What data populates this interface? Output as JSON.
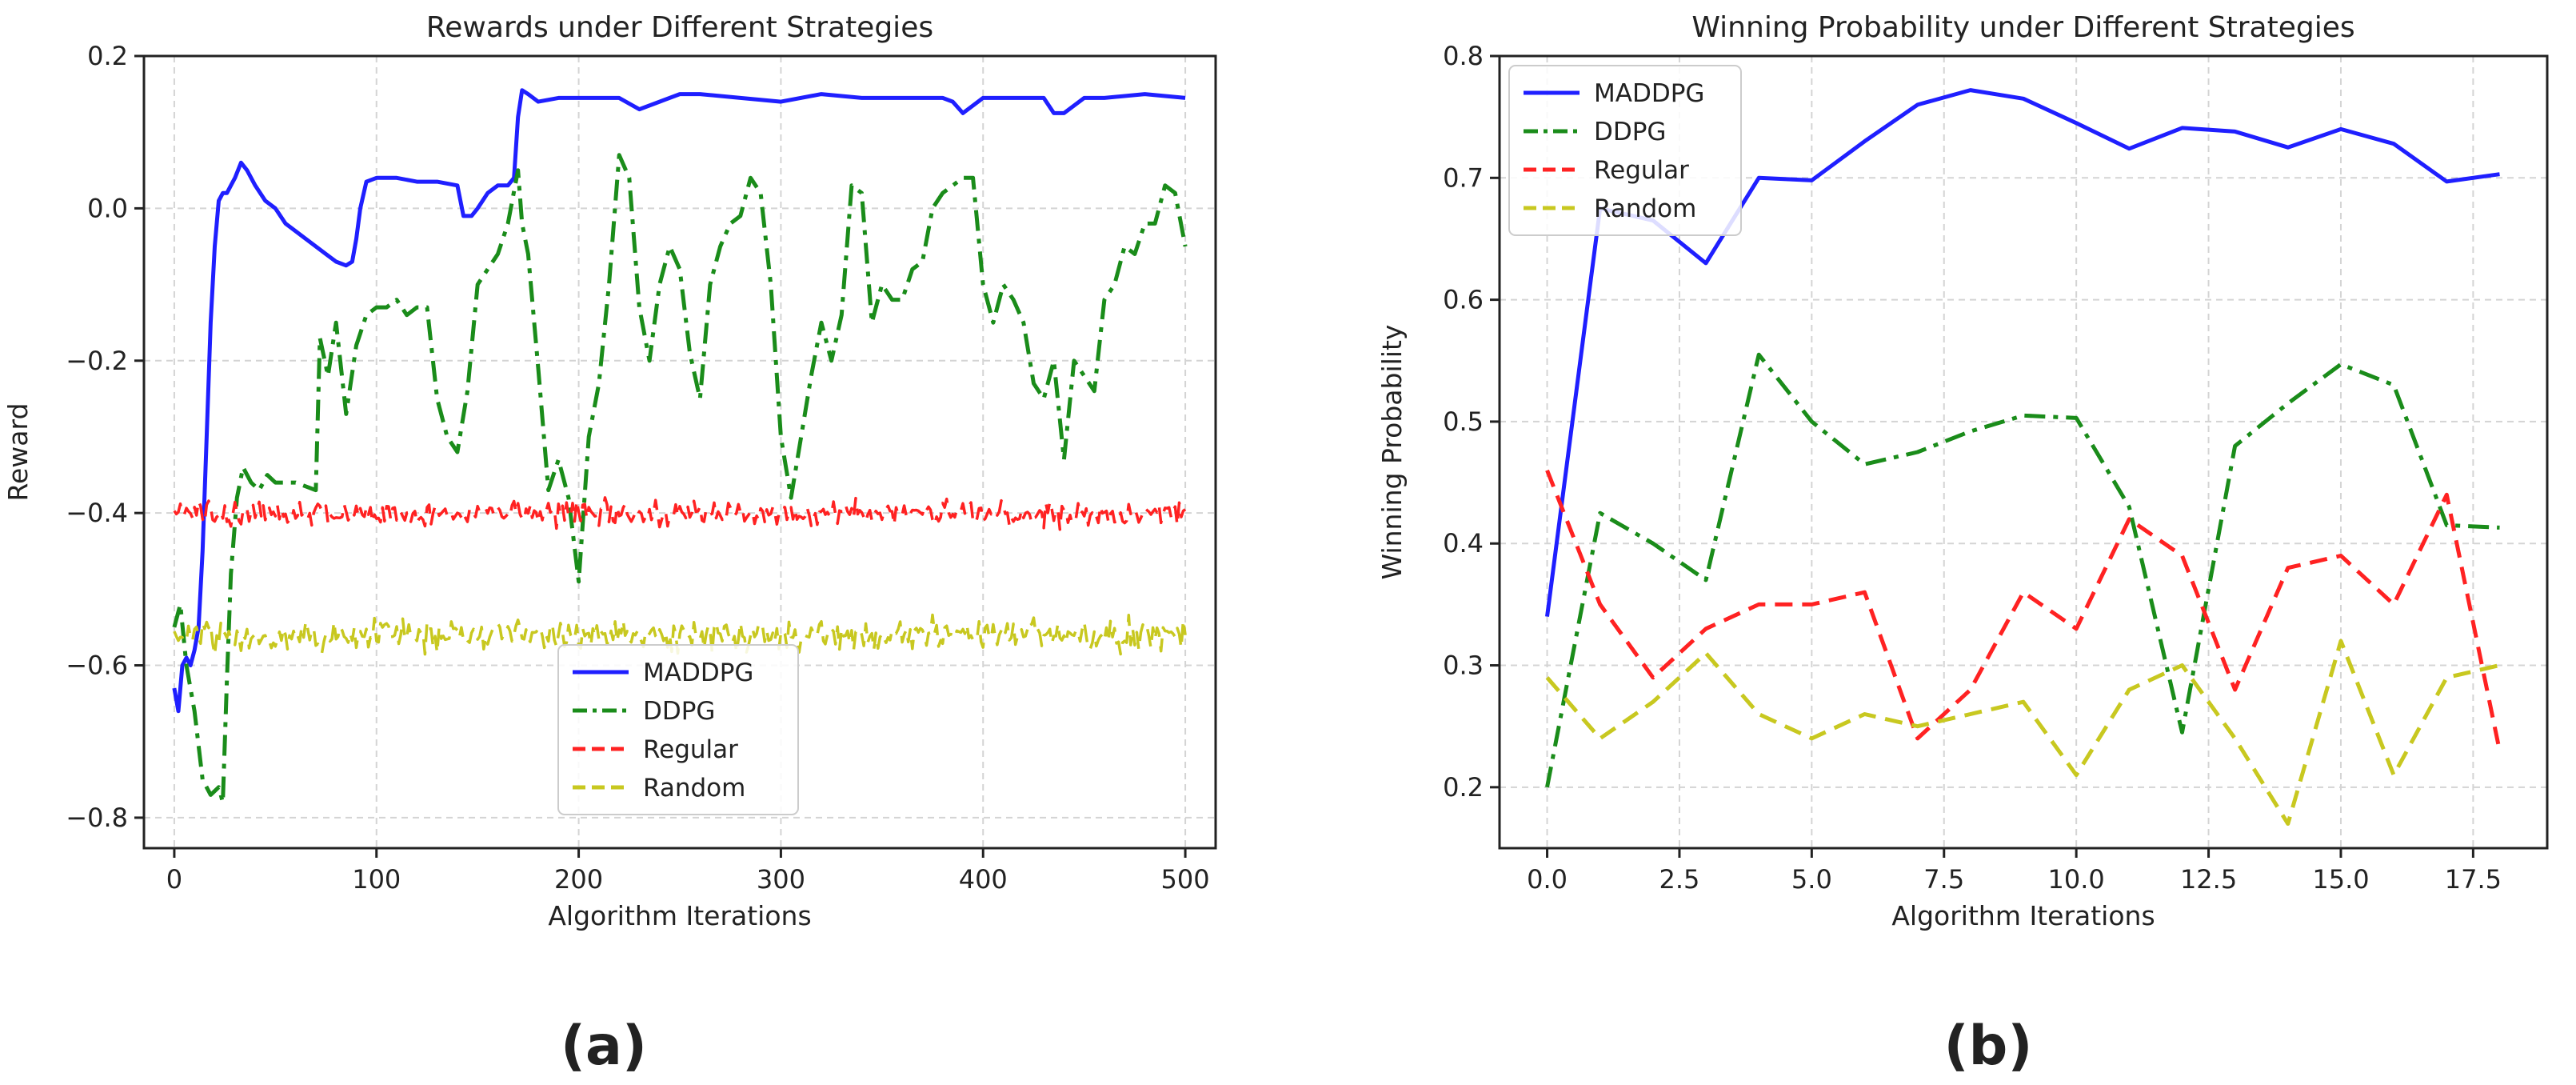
{
  "chart_data": [
    {
      "type": "line",
      "title": "Rewards under Different Strategies",
      "xlabel": "Algorithm Iterations",
      "ylabel": "Reward",
      "xlim": [
        -15,
        515
      ],
      "ylim": [
        -0.84,
        0.2
      ],
      "xticks": [
        0,
        100,
        200,
        300,
        400,
        500
      ],
      "yticks": [
        -0.8,
        -0.6,
        -0.4,
        -0.2,
        0.0,
        0.2
      ],
      "xtick_labels": [
        "0",
        "100",
        "200",
        "300",
        "400",
        "500"
      ],
      "ytick_labels": [
        "−0.8",
        "−0.6",
        "−0.4",
        "−0.2",
        "0.0",
        "0.2"
      ],
      "grid": true,
      "legend_position": "lower-center",
      "panel_label": "(a)",
      "series": [
        {
          "name": "MADDPG",
          "color": "#1f1fff",
          "dash": "solid",
          "x": [
            0,
            2,
            4,
            6,
            8,
            10,
            12,
            14,
            16,
            18,
            20,
            22,
            24,
            26,
            28,
            30,
            33,
            36,
            40,
            45,
            50,
            55,
            60,
            65,
            70,
            75,
            80,
            85,
            88,
            90,
            92,
            95,
            100,
            110,
            120,
            130,
            140,
            143,
            147,
            150,
            155,
            160,
            165,
            168,
            170,
            172,
            175,
            180,
            190,
            200,
            210,
            220,
            230,
            240,
            250,
            260,
            280,
            300,
            320,
            340,
            360,
            380,
            385,
            390,
            400,
            420,
            430,
            435,
            440,
            450,
            460,
            480,
            500
          ],
          "values": [
            -0.63,
            -0.66,
            -0.6,
            -0.59,
            -0.6,
            -0.58,
            -0.55,
            -0.45,
            -0.3,
            -0.15,
            -0.05,
            0.01,
            0.02,
            0.02,
            0.03,
            0.04,
            0.06,
            0.05,
            0.03,
            0.01,
            0.0,
            -0.02,
            -0.03,
            -0.04,
            -0.05,
            -0.06,
            -0.07,
            -0.075,
            -0.07,
            -0.04,
            0.0,
            0.035,
            0.04,
            0.04,
            0.035,
            0.035,
            0.03,
            -0.01,
            -0.01,
            0.0,
            0.02,
            0.03,
            0.03,
            0.04,
            0.12,
            0.155,
            0.15,
            0.14,
            0.145,
            0.145,
            0.145,
            0.145,
            0.13,
            0.14,
            0.15,
            0.15,
            0.145,
            0.14,
            0.15,
            0.145,
            0.145,
            0.145,
            0.14,
            0.125,
            0.145,
            0.145,
            0.145,
            0.125,
            0.125,
            0.145,
            0.145,
            0.15,
            0.145
          ]
        },
        {
          "name": "DDPG",
          "color": "#1a8c1a",
          "dash": "dashdot",
          "x": [
            0,
            3,
            6,
            10,
            14,
            18,
            22,
            24,
            26,
            28,
            31,
            34,
            38,
            42,
            46,
            50,
            60,
            70,
            72,
            76,
            80,
            85,
            90,
            95,
            100,
            105,
            110,
            115,
            120,
            125,
            130,
            135,
            140,
            145,
            150,
            155,
            160,
            165,
            170,
            172,
            175,
            180,
            185,
            190,
            195,
            200,
            205,
            210,
            215,
            220,
            225,
            230,
            235,
            240,
            245,
            250,
            255,
            260,
            265,
            270,
            275,
            280,
            285,
            290,
            295,
            300,
            305,
            310,
            315,
            320,
            325,
            330,
            335,
            340,
            345,
            350,
            355,
            360,
            365,
            370,
            375,
            380,
            385,
            390,
            395,
            400,
            405,
            410,
            415,
            420,
            425,
            430,
            435,
            440,
            445,
            450,
            455,
            460,
            465,
            470,
            475,
            480,
            485,
            490,
            495,
            500
          ],
          "values": [
            -0.55,
            -0.52,
            -0.6,
            -0.66,
            -0.75,
            -0.77,
            -0.76,
            -0.78,
            -0.62,
            -0.48,
            -0.38,
            -0.34,
            -0.36,
            -0.37,
            -0.35,
            -0.36,
            -0.36,
            -0.37,
            -0.17,
            -0.22,
            -0.15,
            -0.27,
            -0.18,
            -0.14,
            -0.13,
            -0.13,
            -0.12,
            -0.14,
            -0.13,
            -0.13,
            -0.25,
            -0.3,
            -0.32,
            -0.24,
            -0.1,
            -0.08,
            -0.06,
            -0.02,
            0.05,
            -0.02,
            -0.06,
            -0.21,
            -0.37,
            -0.33,
            -0.38,
            -0.49,
            -0.3,
            -0.23,
            -0.1,
            0.07,
            0.04,
            -0.13,
            -0.2,
            -0.1,
            -0.05,
            -0.08,
            -0.19,
            -0.25,
            -0.1,
            -0.05,
            -0.02,
            -0.01,
            0.04,
            0.02,
            -0.1,
            -0.3,
            -0.38,
            -0.3,
            -0.22,
            -0.15,
            -0.2,
            -0.14,
            0.03,
            0.02,
            -0.15,
            -0.1,
            -0.12,
            -0.12,
            -0.08,
            -0.07,
            0.0,
            0.02,
            0.03,
            0.04,
            0.04,
            -0.1,
            -0.15,
            -0.1,
            -0.12,
            -0.15,
            -0.23,
            -0.25,
            -0.2,
            -0.33,
            -0.2,
            -0.22,
            -0.24,
            -0.12,
            -0.1,
            -0.05,
            -0.06,
            -0.02,
            -0.02,
            0.03,
            0.02,
            -0.05
          ]
        },
        {
          "name": "Regular",
          "color": "#ff2222",
          "dash": "dashed",
          "x": [
            0,
            500
          ],
          "values": [
            -0.4,
            -0.4
          ],
          "noise_amplitude": 0.012
        },
        {
          "name": "Random",
          "color": "#c8c820",
          "dash": "dashed",
          "x": [
            0,
            500
          ],
          "values": [
            -0.56,
            -0.56
          ],
          "noise_amplitude": 0.015
        }
      ]
    },
    {
      "type": "line",
      "title": "Winning Probability under Different Strategies",
      "xlabel": "Algorithm Iterations",
      "ylabel": "Winning Probability",
      "xlim": [
        -0.9,
        18.9
      ],
      "ylim": [
        0.15,
        0.8
      ],
      "xticks": [
        0,
        2.5,
        5,
        7.5,
        10,
        12.5,
        15,
        17.5
      ],
      "yticks": [
        0.2,
        0.3,
        0.4,
        0.5,
        0.6,
        0.7,
        0.8
      ],
      "xtick_labels": [
        "0.0",
        "2.5",
        "5.0",
        "7.5",
        "10.0",
        "12.5",
        "15.0",
        "17.5"
      ],
      "ytick_labels": [
        "0.2",
        "0.3",
        "0.4",
        "0.5",
        "0.6",
        "0.7",
        "0.8"
      ],
      "grid": true,
      "legend_position": "upper-left",
      "panel_label": "(b)",
      "series": [
        {
          "name": "MADDPG",
          "color": "#1f1fff",
          "dash": "solid",
          "x": [
            0,
            1,
            2,
            3,
            4,
            5,
            6,
            7,
            8,
            9,
            10,
            11,
            12,
            13,
            14,
            15,
            16,
            17,
            18
          ],
          "values": [
            0.34,
            0.675,
            0.665,
            0.63,
            0.7,
            0.698,
            0.73,
            0.76,
            0.772,
            0.765,
            0.745,
            0.724,
            0.741,
            0.738,
            0.725,
            0.74,
            0.728,
            0.697,
            0.703
          ]
        },
        {
          "name": "DDPG",
          "color": "#1a8c1a",
          "dash": "dashdot",
          "x": [
            0,
            1,
            2,
            3,
            4,
            5,
            6,
            7,
            8,
            9,
            10,
            11,
            12,
            13,
            14,
            15,
            16,
            17,
            18
          ],
          "values": [
            0.2,
            0.425,
            0.4,
            0.37,
            0.555,
            0.5,
            0.465,
            0.475,
            0.492,
            0.505,
            0.503,
            0.43,
            0.245,
            0.48,
            0.515,
            0.547,
            0.53,
            0.415,
            0.413
          ]
        },
        {
          "name": "Regular",
          "color": "#ff2222",
          "dash": "dashed",
          "x": [
            0,
            1,
            2,
            3,
            4,
            5,
            6,
            7,
            8,
            9,
            10,
            11,
            12,
            13,
            14,
            15,
            16,
            17,
            18
          ],
          "values": [
            0.46,
            0.35,
            0.29,
            0.33,
            0.35,
            0.35,
            0.36,
            0.24,
            0.28,
            0.36,
            0.33,
            0.42,
            0.39,
            0.28,
            0.38,
            0.39,
            0.35,
            0.44,
            0.23
          ]
        },
        {
          "name": "Random",
          "color": "#c8c820",
          "dash": "dashed",
          "x": [
            0,
            1,
            2,
            3,
            4,
            5,
            6,
            7,
            8,
            9,
            10,
            11,
            12,
            13,
            14,
            15,
            16,
            17,
            18
          ],
          "values": [
            0.29,
            0.24,
            0.27,
            0.31,
            0.26,
            0.24,
            0.26,
            0.25,
            0.26,
            0.27,
            0.21,
            0.28,
            0.3,
            0.24,
            0.17,
            0.32,
            0.21,
            0.29,
            0.3
          ]
        }
      ]
    }
  ]
}
